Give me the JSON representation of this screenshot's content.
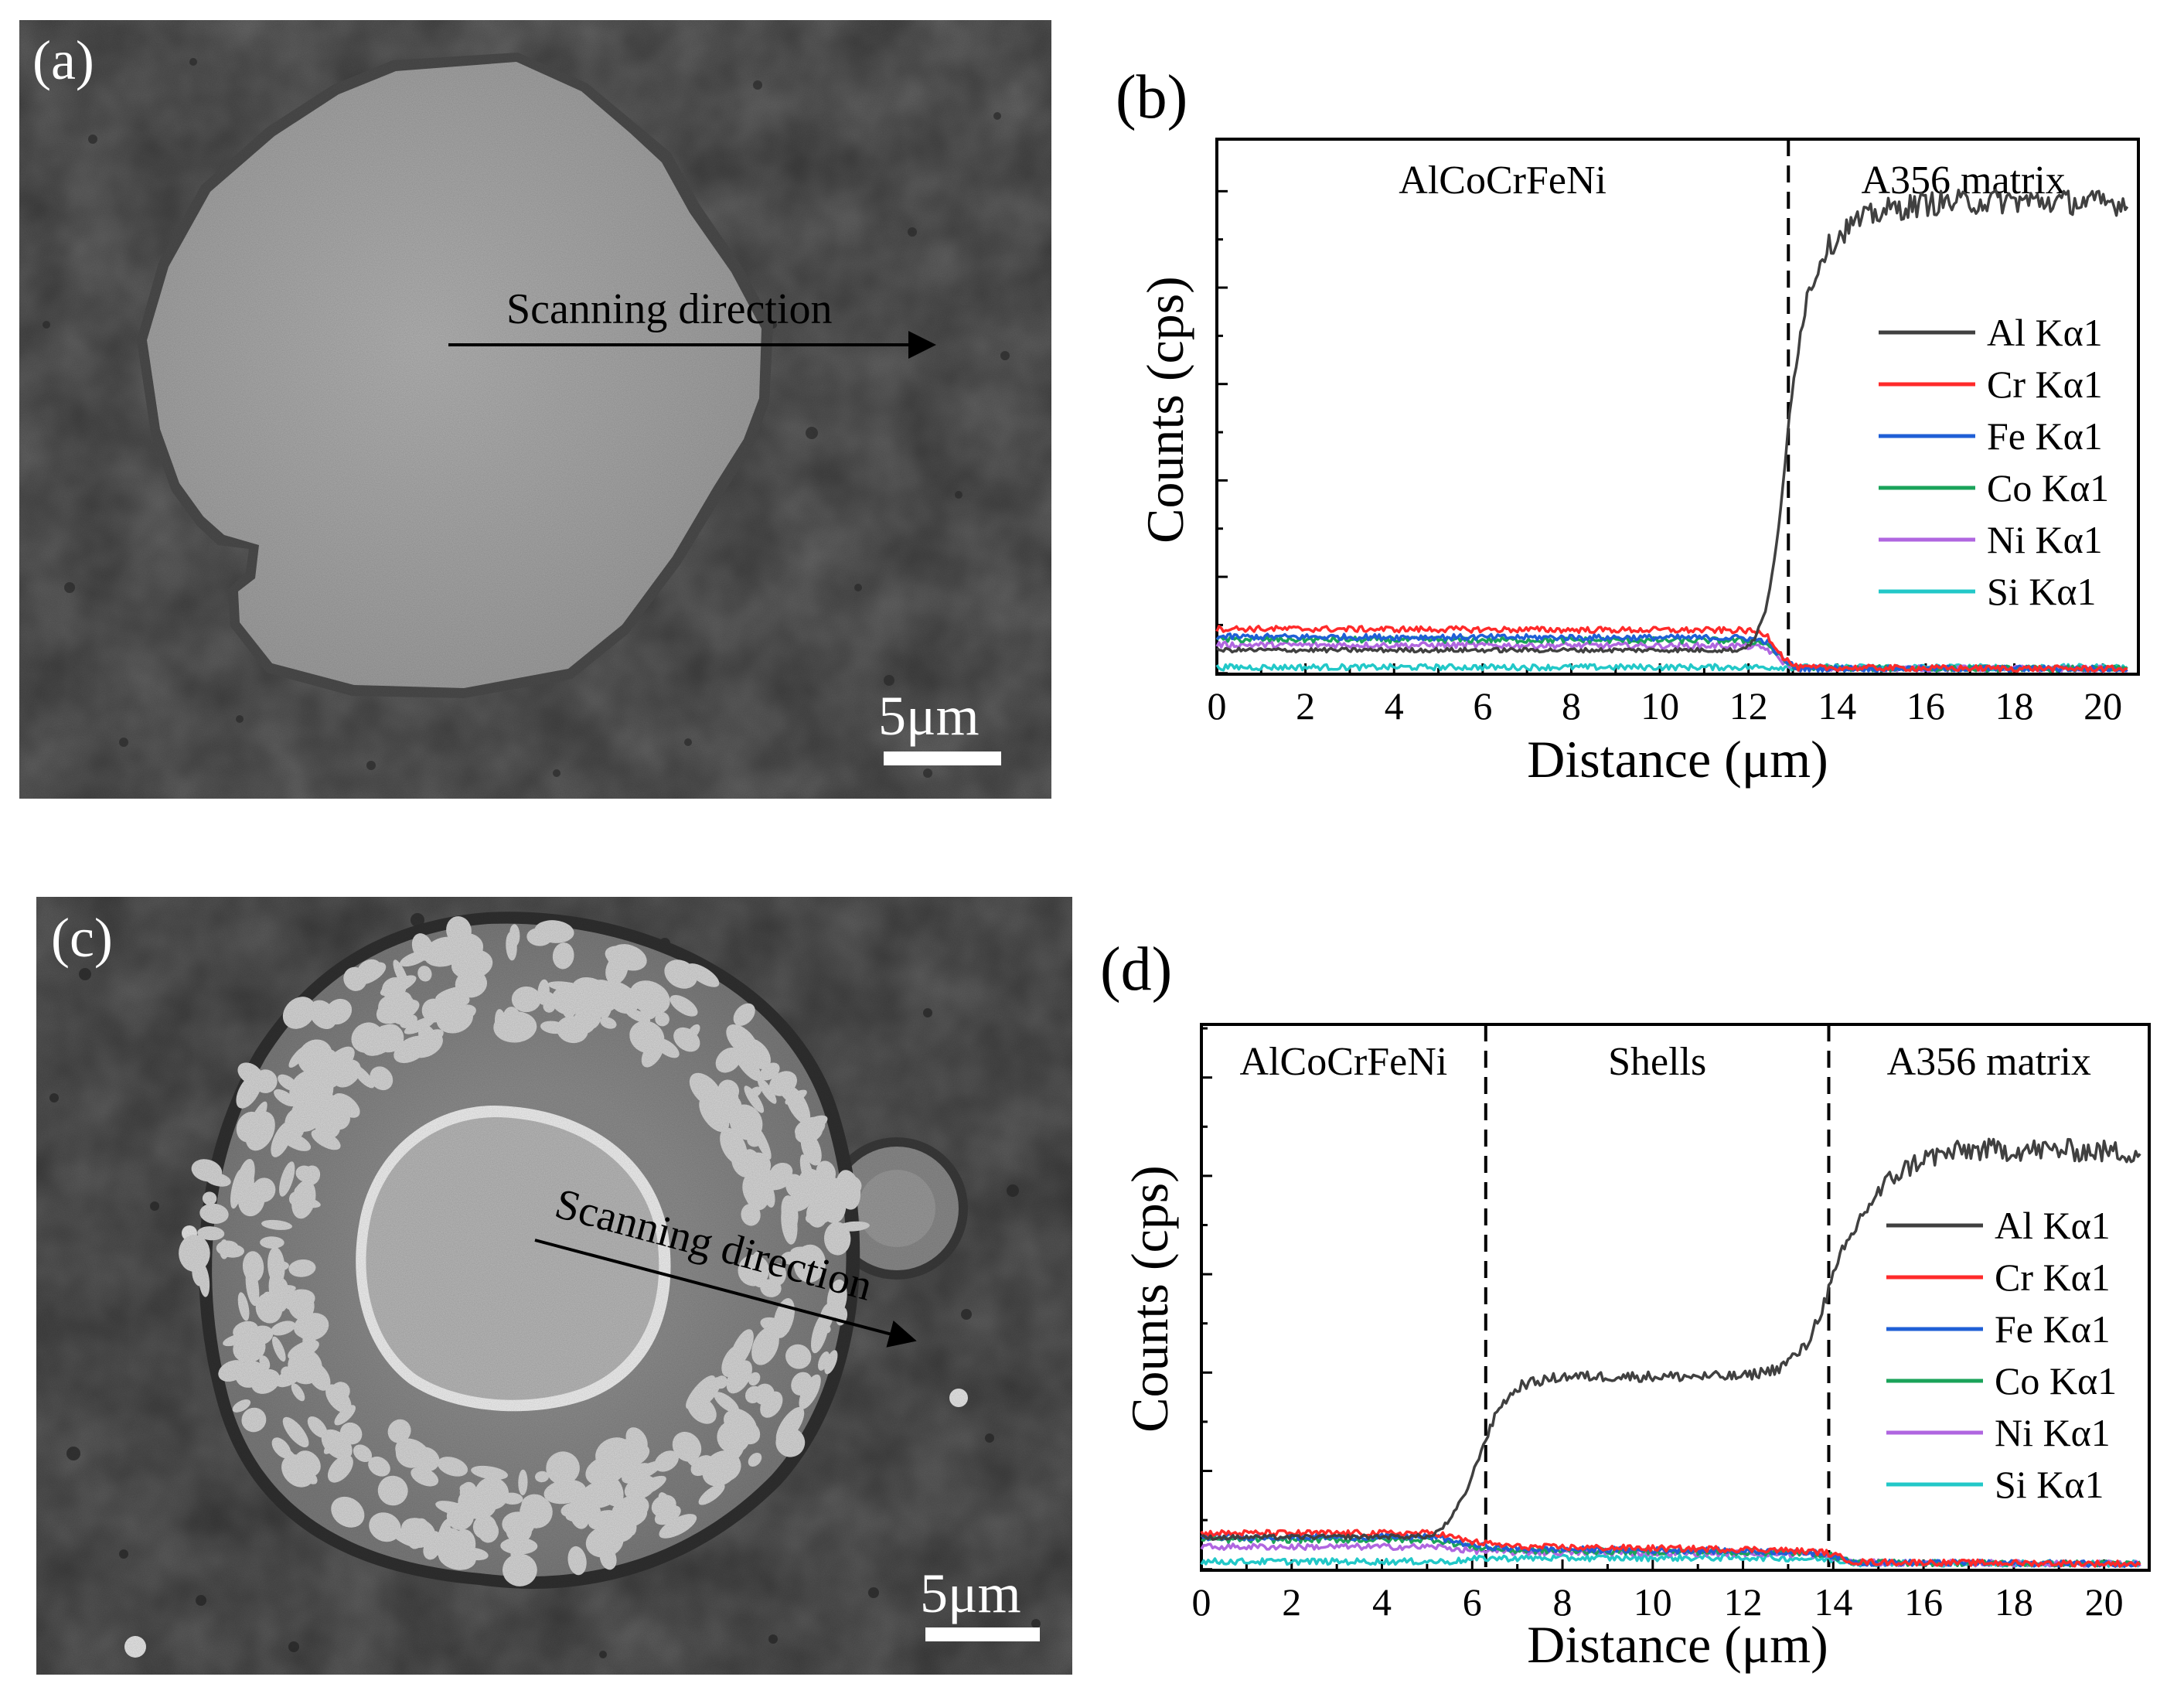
{
  "panels": {
    "a": {
      "label": "(a)",
      "annotation": "Scanning direction",
      "scale_bar": "5μm"
    },
    "c": {
      "label": "(c)",
      "annotation": "Scanning direction",
      "scale_bar": "5μm"
    }
  },
  "colors": {
    "Al": "#404040",
    "Cr": "#ff2a2a",
    "Fe": "#1f5fd6",
    "Co": "#1aa35a",
    "Ni": "#b066e0",
    "Si": "#22c8c8"
  },
  "chart_data": [
    {
      "type": "line",
      "panel_label": "(b)",
      "xlabel": "Distance (μm)",
      "ylabel": "Counts (cps)",
      "xlim": [
        0,
        20.8
      ],
      "ylim": [
        0,
        100
      ],
      "xticks": [
        0,
        2,
        4,
        6,
        8,
        10,
        12,
        14,
        16,
        18,
        20
      ],
      "yticks_count": 6,
      "y_tick_labels_shown": false,
      "legend_position": "right",
      "regions": [
        {
          "label": "AlCoCrFeNi",
          "x_start": 0,
          "x_end": 12.9
        },
        {
          "label": "A356 matrix",
          "x_start": 12.9,
          "x_end": 20.8
        }
      ],
      "boundaries": [
        12.9
      ],
      "series": [
        {
          "name": "Al Kα1",
          "color_key": "Al",
          "points": [
            [
              0,
              4.5
            ],
            [
              11.8,
              4.5
            ],
            [
              12.1,
              6
            ],
            [
              12.4,
              12
            ],
            [
              12.7,
              28
            ],
            [
              13.0,
              55
            ],
            [
              13.3,
              70
            ],
            [
              13.7,
              79
            ],
            [
              14.3,
              84
            ],
            [
              15.0,
              86.5
            ],
            [
              16.0,
              88
            ],
            [
              18.0,
              88.5
            ],
            [
              20.6,
              88
            ]
          ]
        },
        {
          "name": "Cr Kα1",
          "color_key": "Cr",
          "points": [
            [
              0,
              8.5
            ],
            [
              11.9,
              8.2
            ],
            [
              12.4,
              7.5
            ],
            [
              12.8,
              3
            ],
            [
              13.1,
              1.2
            ],
            [
              20.6,
              1
            ]
          ]
        },
        {
          "name": "Fe Kα1",
          "color_key": "Fe",
          "points": [
            [
              0,
              7
            ],
            [
              11.9,
              6.8
            ],
            [
              12.4,
              6.2
            ],
            [
              12.8,
              2.6
            ],
            [
              13.1,
              1.1
            ],
            [
              20.6,
              1
            ]
          ]
        },
        {
          "name": "Co Kα1",
          "color_key": "Co",
          "points": [
            [
              0,
              6.5
            ],
            [
              11.9,
              6.3
            ],
            [
              12.4,
              5.8
            ],
            [
              12.8,
              2.5
            ],
            [
              13.1,
              1.1
            ],
            [
              20.6,
              1
            ]
          ]
        },
        {
          "name": "Ni Kα1",
          "color_key": "Ni",
          "points": [
            [
              0,
              5.5
            ],
            [
              11.9,
              5.3
            ],
            [
              12.4,
              4.8
            ],
            [
              12.8,
              2.2
            ],
            [
              13.1,
              1.1
            ],
            [
              20.6,
              1
            ]
          ]
        },
        {
          "name": "Si Kα1",
          "color_key": "Si",
          "points": [
            [
              0,
              1.3
            ],
            [
              20.6,
              1.3
            ]
          ]
        }
      ]
    },
    {
      "type": "line",
      "panel_label": "(d)",
      "xlabel": "Distance (μm)",
      "ylabel": "Counts (cps)",
      "xlim": [
        0,
        21
      ],
      "ylim": [
        0,
        100
      ],
      "xticks": [
        0,
        2,
        4,
        6,
        8,
        10,
        12,
        14,
        16,
        18,
        20
      ],
      "yticks_count": 6,
      "y_tick_labels_shown": false,
      "legend_position": "right",
      "regions": [
        {
          "label": "AlCoCrFeNi",
          "x_start": 0,
          "x_end": 6.3
        },
        {
          "label": "Shells",
          "x_start": 6.3,
          "x_end": 13.9
        },
        {
          "label": "A356 matrix",
          "x_start": 13.9,
          "x_end": 21
        }
      ],
      "boundaries": [
        6.3,
        13.9
      ],
      "series": [
        {
          "name": "Al Kα1",
          "color_key": "Al",
          "points": [
            [
              0,
              6
            ],
            [
              5.1,
              6.2
            ],
            [
              5.5,
              9
            ],
            [
              5.9,
              15
            ],
            [
              6.2,
              22
            ],
            [
              6.6,
              30
            ],
            [
              7.1,
              34
            ],
            [
              8.0,
              35.5
            ],
            [
              10.0,
              35.5
            ],
            [
              12.0,
              35.5
            ],
            [
              12.8,
              37
            ],
            [
              13.4,
              41
            ],
            [
              13.8,
              49
            ],
            [
              14.2,
              58
            ],
            [
              14.7,
              66
            ],
            [
              15.3,
              72
            ],
            [
              16.0,
              75.5
            ],
            [
              17.0,
              77
            ],
            [
              19.0,
              77
            ],
            [
              20.8,
              76.5
            ]
          ]
        },
        {
          "name": "Cr Kα1",
          "color_key": "Cr",
          "points": [
            [
              0,
              6.8
            ],
            [
              5.2,
              6.8
            ],
            [
              6.0,
              5.2
            ],
            [
              7.0,
              4.3
            ],
            [
              12.5,
              3.8
            ],
            [
              13.8,
              3.3
            ],
            [
              14.5,
              1.5
            ],
            [
              20.8,
              1.2
            ]
          ]
        },
        {
          "name": "Fe Kα1",
          "color_key": "Fe",
          "points": [
            [
              0,
              6.1
            ],
            [
              5.2,
              6.1
            ],
            [
              6.0,
              4.6
            ],
            [
              7.0,
              3.9
            ],
            [
              12.5,
              3.5
            ],
            [
              13.8,
              3.1
            ],
            [
              14.5,
              1.4
            ],
            [
              20.8,
              1.2
            ]
          ]
        },
        {
          "name": "Co Kα1",
          "color_key": "Co",
          "points": [
            [
              0,
              5.6
            ],
            [
              5.2,
              5.6
            ],
            [
              6.0,
              4.3
            ],
            [
              7.0,
              3.6
            ],
            [
              12.5,
              3.3
            ],
            [
              13.8,
              3.0
            ],
            [
              14.5,
              1.4
            ],
            [
              20.8,
              1.2
            ]
          ]
        },
        {
          "name": "Ni Kα1",
          "color_key": "Ni",
          "points": [
            [
              0,
              4.3
            ],
            [
              5.2,
              4.3
            ],
            [
              6.0,
              3.6
            ],
            [
              7.0,
              3.3
            ],
            [
              12.5,
              3.1
            ],
            [
              13.8,
              2.8
            ],
            [
              14.5,
              1.4
            ],
            [
              20.8,
              1.2
            ]
          ]
        },
        {
          "name": "Si Kα1",
          "color_key": "Si",
          "points": [
            [
              0,
              1.6
            ],
            [
              5.5,
              1.6
            ],
            [
              6.3,
              2.2
            ],
            [
              12.5,
              2.3
            ],
            [
              13.9,
              2.0
            ],
            [
              14.6,
              1.3
            ],
            [
              20.8,
              1.2
            ]
          ]
        }
      ]
    }
  ]
}
